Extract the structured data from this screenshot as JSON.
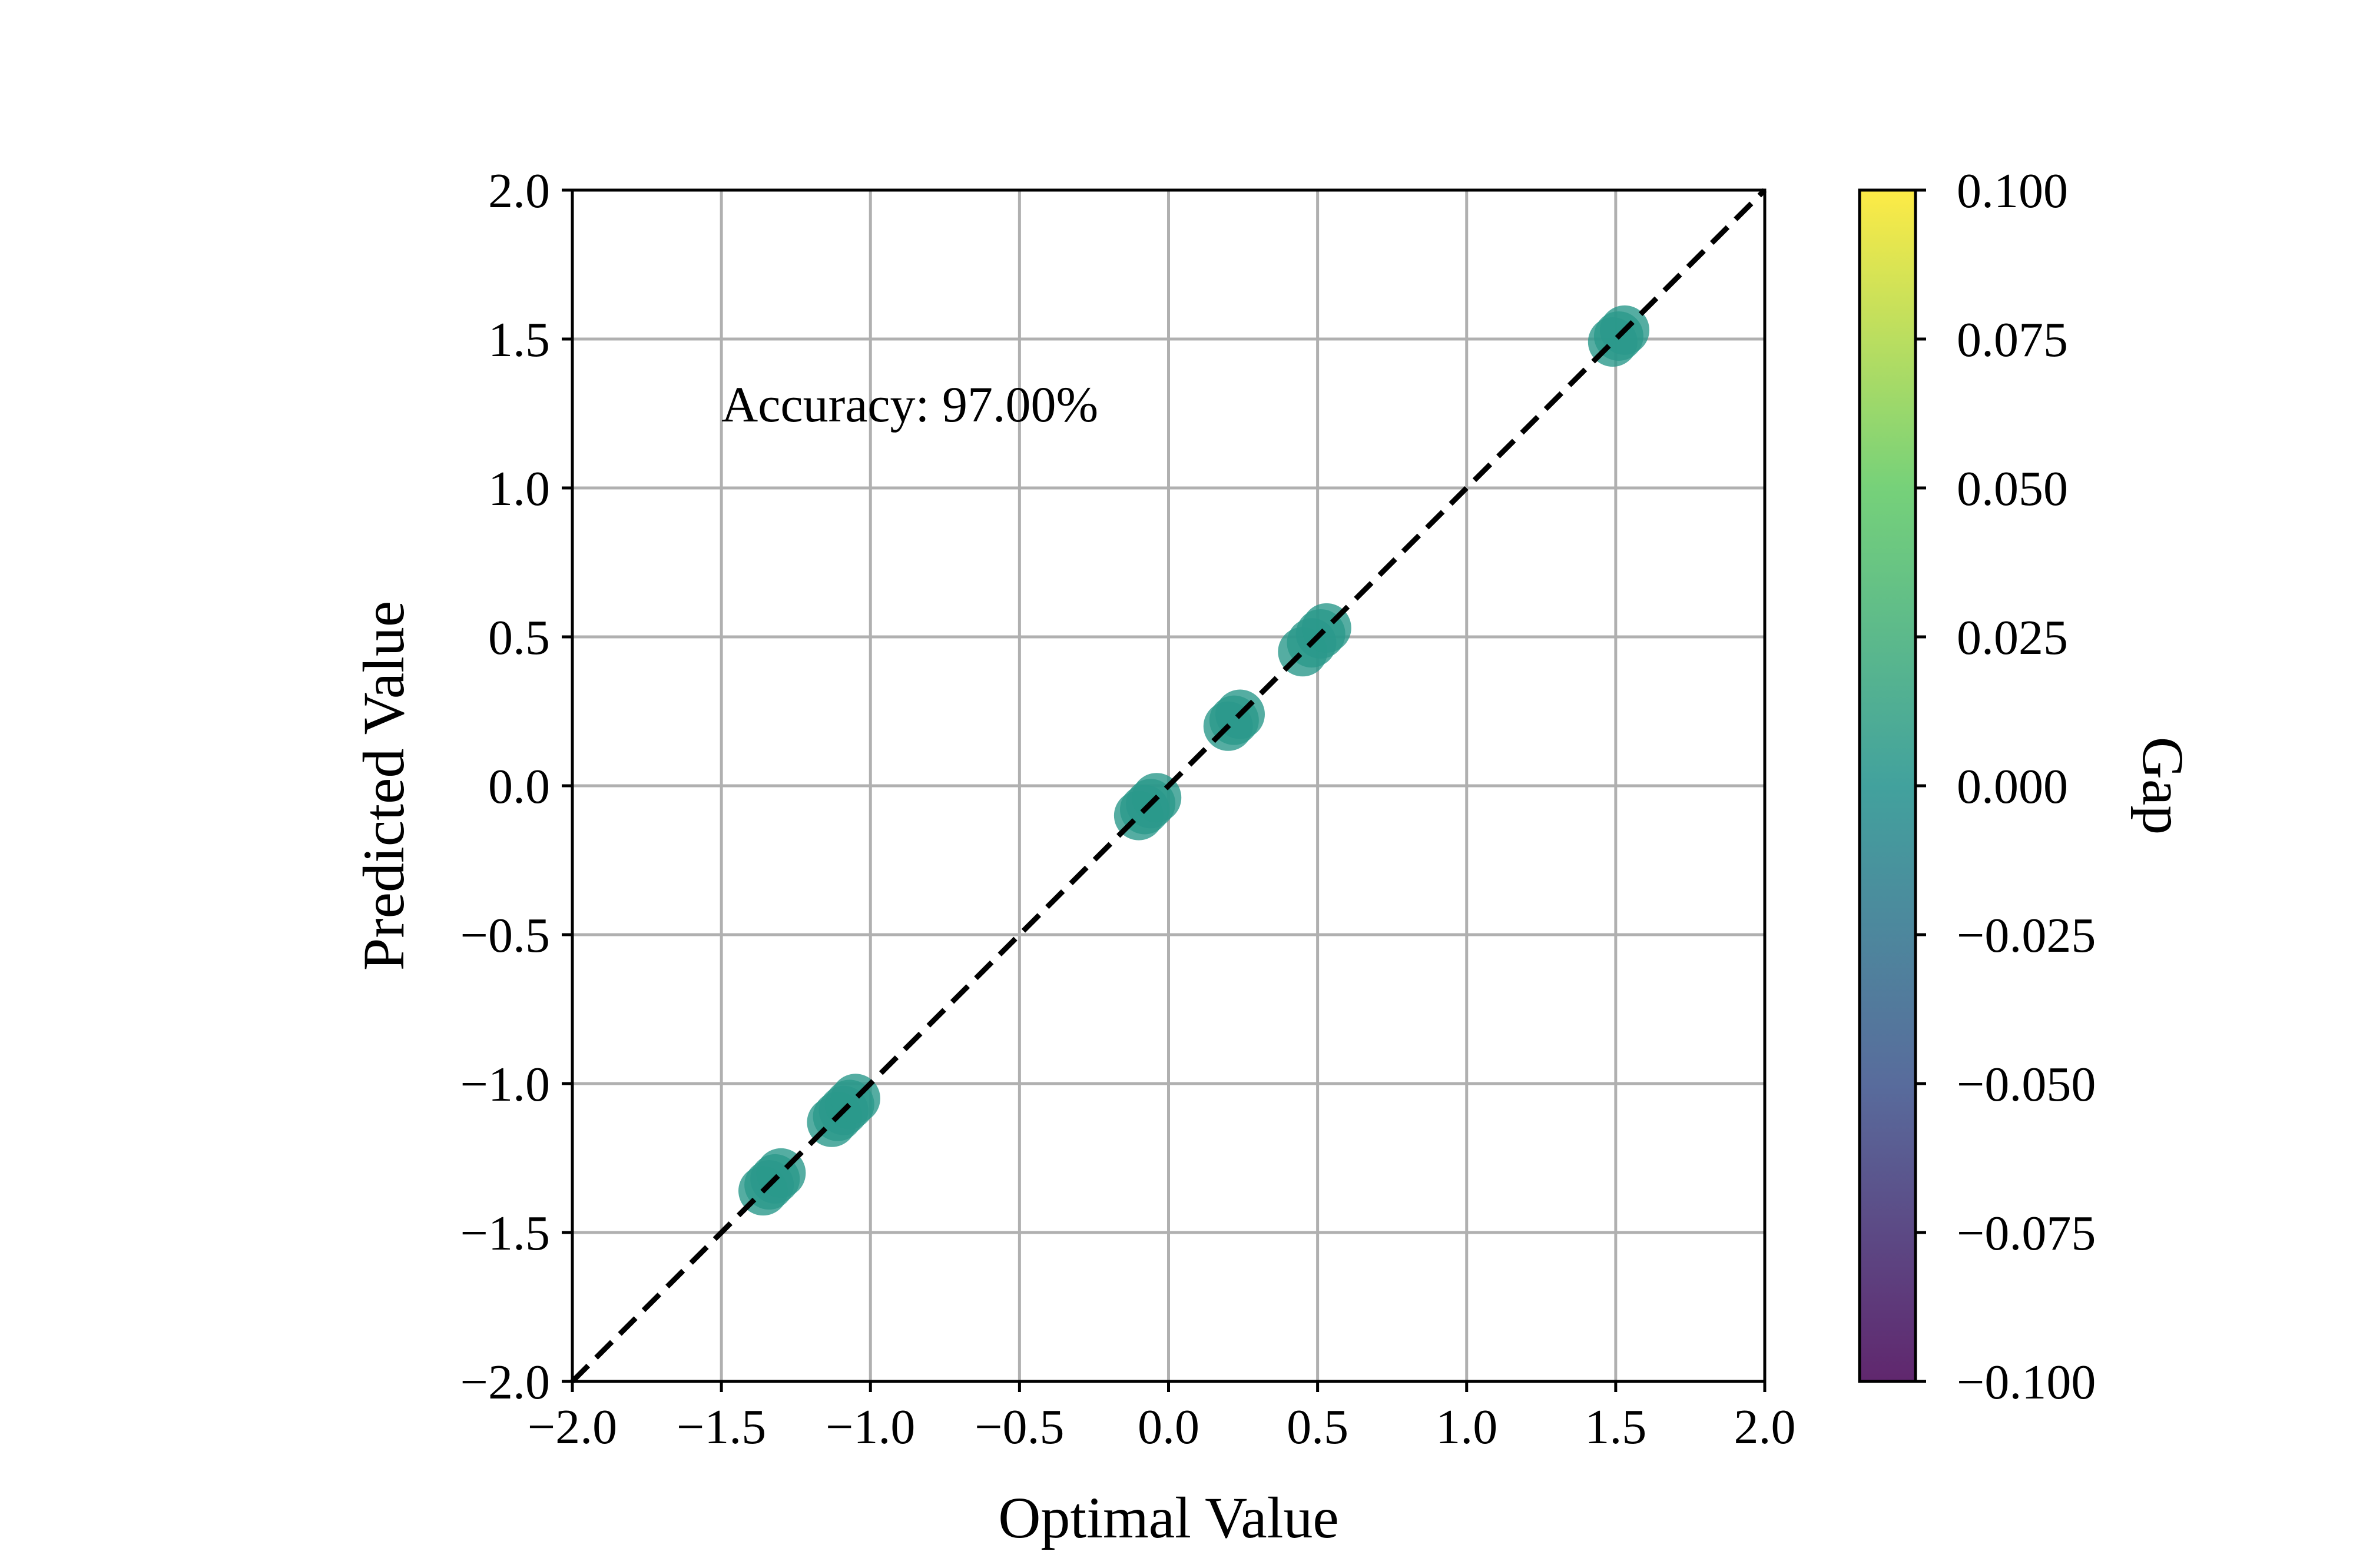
{
  "chart_data": {
    "type": "scatter",
    "xlabel": "Optimal Value",
    "ylabel": "Predicted Value",
    "xlim": [
      -2.0,
      2.0
    ],
    "ylim": [
      -2.0,
      2.0
    ],
    "xticks": [
      "−2.0",
      "−1.5",
      "−1.0",
      "−0.5",
      "0.0",
      "0.5",
      "1.0",
      "1.5",
      "2.0"
    ],
    "yticks": [
      "−2.0",
      "−1.5",
      "−1.0",
      "−0.5",
      "0.0",
      "0.5",
      "1.0",
      "1.5",
      "2.0"
    ],
    "xtick_values": [
      -2.0,
      -1.5,
      -1.0,
      -0.5,
      0.0,
      0.5,
      1.0,
      1.5,
      2.0
    ],
    "ytick_values": [
      -2.0,
      -1.5,
      -1.0,
      -0.5,
      0.0,
      0.5,
      1.0,
      1.5,
      2.0
    ],
    "grid": true,
    "annotation": {
      "text": "Accuracy: 97.00%",
      "x": -1.5,
      "y": 1.2
    },
    "reference_line": {
      "style": "dashed",
      "color": "#000000",
      "from": [
        -2.0,
        -2.0
      ],
      "to": [
        2.0,
        2.0
      ]
    },
    "points": [
      {
        "x": -1.36,
        "y": -1.36
      },
      {
        "x": -1.34,
        "y": -1.34
      },
      {
        "x": -1.32,
        "y": -1.32
      },
      {
        "x": -1.3,
        "y": -1.3
      },
      {
        "x": -1.13,
        "y": -1.13
      },
      {
        "x": -1.11,
        "y": -1.11
      },
      {
        "x": -1.09,
        "y": -1.09
      },
      {
        "x": -1.07,
        "y": -1.07
      },
      {
        "x": -1.05,
        "y": -1.05
      },
      {
        "x": -0.1,
        "y": -0.1
      },
      {
        "x": -0.08,
        "y": -0.08
      },
      {
        "x": -0.06,
        "y": -0.06
      },
      {
        "x": -0.04,
        "y": -0.04
      },
      {
        "x": 0.2,
        "y": 0.2
      },
      {
        "x": 0.22,
        "y": 0.22
      },
      {
        "x": 0.24,
        "y": 0.24
      },
      {
        "x": 0.45,
        "y": 0.45
      },
      {
        "x": 0.48,
        "y": 0.48
      },
      {
        "x": 0.51,
        "y": 0.51
      },
      {
        "x": 0.53,
        "y": 0.53
      },
      {
        "x": 1.49,
        "y": 1.49
      },
      {
        "x": 1.51,
        "y": 1.51
      },
      {
        "x": 1.53,
        "y": 1.53
      }
    ],
    "point_color": "#2a998b",
    "colorbar": {
      "label": "Gap",
      "range": [
        -0.1,
        0.1
      ],
      "tick_values": [
        0.1,
        0.075,
        0.05,
        0.025,
        0.0,
        -0.025,
        -0.05,
        -0.075,
        -0.1
      ],
      "ticks": [
        "0.100",
        "0.075",
        "0.050",
        "0.025",
        "0.000",
        "−0.025",
        "−0.050",
        "−0.075",
        "−0.100"
      ],
      "colormap_stops": [
        "#440154",
        "#3b528b",
        "#21918c",
        "#5ec962",
        "#fde725"
      ]
    }
  }
}
